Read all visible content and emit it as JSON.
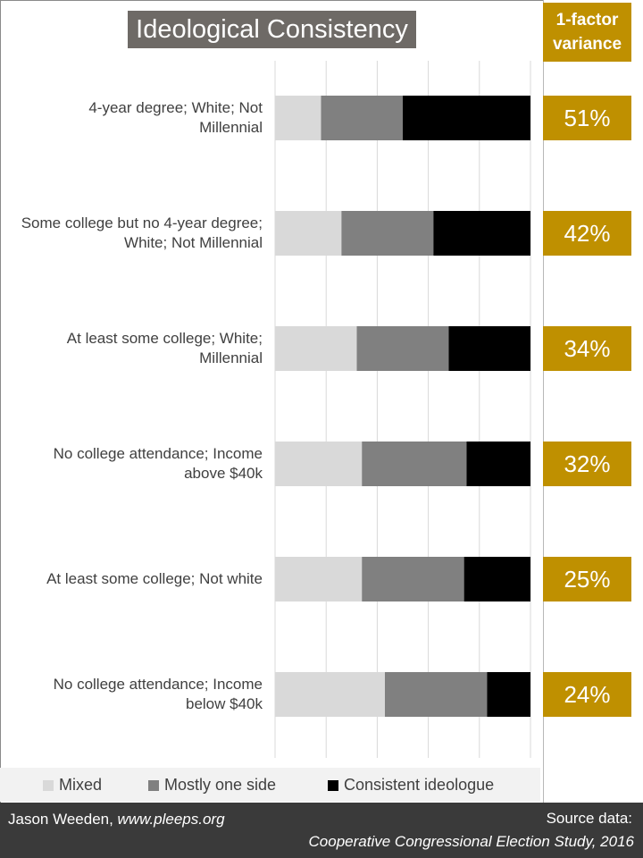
{
  "title": "Ideological Consistency",
  "variance_header": [
    "1-factor",
    "variance"
  ],
  "chart_data": {
    "type": "bar",
    "orientation": "horizontal",
    "stacked": "percent",
    "title": "Ideological Consistency",
    "categories": [
      [
        "4-year degree; White; Not",
        "Millennial"
      ],
      [
        "Some college but no 4-year degree;",
        "White; Not Millennial"
      ],
      [
        "At least some college; White;",
        "Millennial"
      ],
      [
        "No college attendance; Income",
        "above $40k"
      ],
      [
        "At least some college; Not white"
      ],
      [
        "No college attendance; Income",
        "below $40k"
      ]
    ],
    "series": [
      {
        "name": "Mixed",
        "color": "#d9d9d9",
        "values": [
          18,
          26,
          32,
          34,
          34,
          43
        ]
      },
      {
        "name": "Mostly one side",
        "color": "#808080",
        "values": [
          32,
          36,
          36,
          41,
          40,
          40
        ]
      },
      {
        "name": "Consistent ideologue",
        "color": "#000000",
        "values": [
          50,
          38,
          32,
          25,
          26,
          17
        ]
      }
    ],
    "xlim": [
      0,
      100
    ],
    "grid": true,
    "legend": "bottom"
  },
  "variance": [
    "51%",
    "42%",
    "34%",
    "32%",
    "25%",
    "24%"
  ],
  "legend_items": [
    {
      "label": "Mixed",
      "color": "#d9d9d9"
    },
    {
      "label": "Mostly one side",
      "color": "#808080"
    },
    {
      "label": "Consistent ideologue",
      "color": "#000000"
    }
  ],
  "footer": {
    "author": "Jason Weeden, ",
    "site": "www.pleeps.org",
    "source_label": "Source data:",
    "source": "Cooperative Congressional Election Study, 2016"
  },
  "colors": {
    "accent": "#bf9000",
    "title_bg": "#6e6a66",
    "footer_bg": "#3a3a3a"
  }
}
